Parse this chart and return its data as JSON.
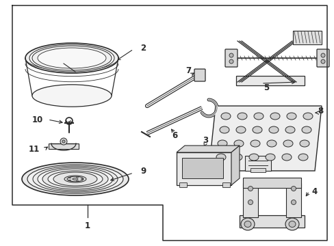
{
  "bg_color": "#ffffff",
  "line_color": "#2a2a2a",
  "label_color": "#111111",
  "border_lw": 1.0,
  "fig_w": 4.89,
  "fig_h": 3.6,
  "dpi": 100
}
